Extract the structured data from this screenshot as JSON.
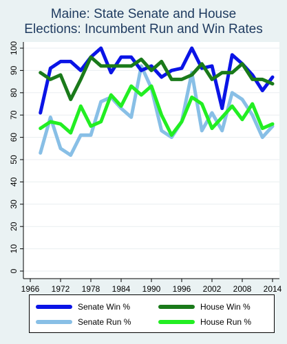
{
  "chart_data": {
    "type": "line",
    "title_lines": [
      "Maine: State Senate and House",
      "Elections: Incumbent Run and Win Rates"
    ],
    "xlabel": "",
    "ylabel": "",
    "xlim": [
      1966,
      2014
    ],
    "ylim": [
      0,
      100
    ],
    "xticks": [
      1966,
      1972,
      1978,
      1984,
      1990,
      1996,
      2002,
      2008,
      2014
    ],
    "yticks": [
      0,
      10,
      20,
      30,
      40,
      50,
      60,
      70,
      80,
      90,
      100
    ],
    "grid": true,
    "legend_position": "bottom",
    "series": [
      {
        "name": "Senate Win %",
        "color": "#0a14e6",
        "x": [
          1968,
          1970,
          1972,
          1974,
          1976,
          1978,
          1980,
          1982,
          1984,
          1986,
          1988,
          1990,
          1992,
          1994,
          1996,
          1998,
          2000,
          2002,
          2004,
          2006,
          2008,
          2010,
          2012,
          2014
        ],
        "values": [
          71,
          91,
          94,
          94,
          90,
          96,
          100,
          89,
          96,
          96,
          90,
          92,
          87,
          90,
          91,
          100,
          91,
          92,
          73,
          97,
          93,
          88,
          81,
          87
        ]
      },
      {
        "name": "House Win %",
        "color": "#1a7a1a",
        "x": [
          1968,
          1970,
          1972,
          1974,
          1976,
          1978,
          1980,
          1982,
          1984,
          1986,
          1988,
          1990,
          1992,
          1994,
          1996,
          1998,
          2000,
          2002,
          2004,
          2006,
          2008,
          2010,
          2012,
          2014
        ],
        "values": [
          89,
          86,
          88,
          77,
          86,
          96,
          92,
          92,
          92,
          92,
          95,
          90,
          94,
          86,
          86,
          88,
          93,
          86,
          89,
          89,
          93,
          86,
          86,
          84
        ]
      },
      {
        "name": "Senate Run %",
        "color": "#88bfe6",
        "x": [
          1968,
          1970,
          1972,
          1974,
          1976,
          1978,
          1980,
          1982,
          1984,
          1986,
          1988,
          1990,
          1992,
          1994,
          1996,
          1998,
          2000,
          2002,
          2004,
          2006,
          2008,
          2010,
          2012,
          2014
        ],
        "values": [
          53,
          69,
          55,
          52,
          61,
          61,
          76,
          78,
          73,
          69,
          92,
          82,
          63,
          60,
          67,
          89,
          63,
          71,
          63,
          80,
          77,
          70,
          60,
          65
        ]
      },
      {
        "name": "House Run %",
        "color": "#22ee22",
        "x": [
          1968,
          1970,
          1972,
          1974,
          1976,
          1978,
          1980,
          1982,
          1984,
          1986,
          1988,
          1990,
          1992,
          1994,
          1996,
          1998,
          2000,
          2002,
          2004,
          2006,
          2008,
          2010,
          2012,
          2014
        ],
        "values": [
          64,
          67,
          66,
          62,
          74,
          65,
          67,
          79,
          74,
          83,
          79,
          83,
          70,
          61,
          67,
          78,
          75,
          64,
          69,
          74,
          68,
          75,
          64,
          66
        ]
      }
    ]
  }
}
